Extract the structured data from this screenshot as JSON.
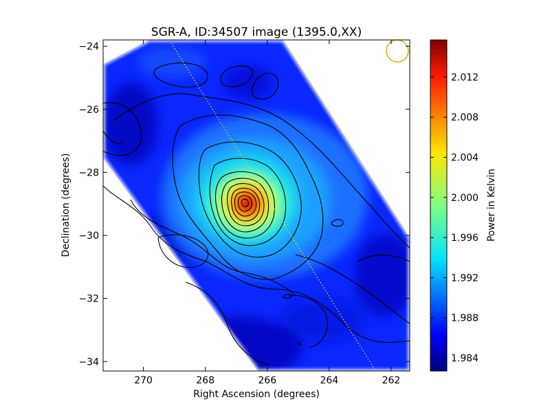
{
  "chart_data": {
    "type": "heatmap",
    "title": "SGR-A, ID:34507 image (1395.0,XX)",
    "xlabel": "Right Ascension (degrees)",
    "ylabel": "Declination (degrees)",
    "xlim": [
      271.3,
      261.4
    ],
    "ylim": [
      -34.3,
      -23.8
    ],
    "x_ticks": [
      270,
      268,
      266,
      264,
      262
    ],
    "y_ticks": [
      -24,
      -26,
      -28,
      -30,
      -32,
      -34
    ],
    "colorbar": {
      "label": "Power in Kelvin",
      "range": [
        1.9827,
        2.0157
      ],
      "ticks": [
        1.984,
        1.988,
        1.992,
        1.996,
        2.0,
        2.004,
        2.008,
        2.012
      ],
      "tick_labels": [
        "1.984",
        "1.988",
        "1.992",
        "1.996",
        "2.000",
        "2.004",
        "2.008",
        "2.012"
      ],
      "colormap": "jet"
    },
    "peak": {
      "ra": 266.4,
      "dec": -28.9,
      "value": 2.0155
    },
    "background_level": 1.987,
    "beam": {
      "ra": 261.8,
      "dec": -24.15,
      "color": "#c8b400"
    },
    "scan_line": {
      "ra": [
        269.1,
        262.5
      ],
      "dec": [
        -23.9,
        -34.3
      ],
      "color": "#e6dc3c"
    },
    "grid": false,
    "legend": "none"
  }
}
